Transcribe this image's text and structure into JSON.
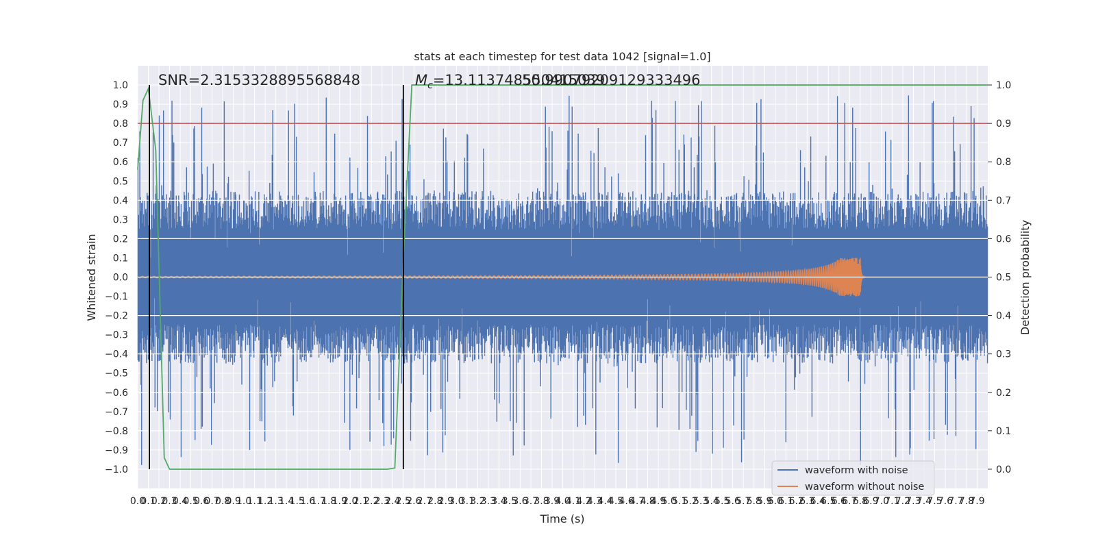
{
  "chart_data": {
    "type": "line",
    "title": "stats at each timestep for test data 1042 [signal=1.0]",
    "xlabel": "Time (s)",
    "ylabel": "Whitened strain",
    "ylabel_right": "Detection probability",
    "xlim": [
      0.0,
      8.0
    ],
    "ylim": [
      -1.1,
      1.1
    ],
    "ylim_right": [
      -0.05,
      1.05
    ],
    "x_ticks": [
      "0.0",
      "0.1",
      "0.2",
      "0.3",
      "0.4",
      "0.5",
      "0.6",
      "0.7",
      "0.8",
      "0.9",
      "1.0",
      "1.1",
      "1.2",
      "1.3",
      "1.4",
      "1.5",
      "1.6",
      "1.7",
      "1.8",
      "1.9",
      "2.0",
      "2.1",
      "2.2",
      "2.3",
      "2.4",
      "2.5",
      "2.6",
      "2.7",
      "2.8",
      "2.9",
      "3.0",
      "3.1",
      "3.2",
      "3.3",
      "3.4",
      "3.5",
      "3.6",
      "3.7",
      "3.8",
      "3.9",
      "4.0",
      "4.1",
      "4.2",
      "4.3",
      "4.4",
      "4.5",
      "4.6",
      "4.7",
      "4.8",
      "4.9",
      "5.0",
      "5.1",
      "5.2",
      "5.3",
      "5.4",
      "5.5",
      "5.6",
      "5.7",
      "5.8",
      "5.9",
      "6.0",
      "6.1",
      "6.2",
      "6.3",
      "6.4",
      "6.5",
      "6.6",
      "6.7",
      "6.8",
      "6.9",
      "7.0",
      "7.1",
      "7.2",
      "7.3",
      "7.4",
      "7.5",
      "7.6",
      "7.7",
      "7.8",
      "7.9"
    ],
    "y_ticks": [
      "1.0",
      "0.9",
      "0.8",
      "0.7",
      "0.6",
      "0.5",
      "0.4",
      "0.3",
      "0.2",
      "0.1",
      "0.0",
      "−0.1",
      "−0.2",
      "−0.3",
      "−0.4",
      "−0.5",
      "−0.6",
      "−0.7",
      "−0.8",
      "−0.9",
      "−1.0"
    ],
    "y_right_ticks": [
      "1.0",
      "0.9",
      "0.8",
      "0.7",
      "0.6",
      "0.5",
      "0.4",
      "0.3",
      "0.2",
      "0.1",
      "0.0"
    ],
    "annotations": {
      "snr": "SNR=2.3153328895568848",
      "mc_prefix": "M",
      "mc_sub": "c",
      "mc_value": "=13.113748550415039",
      "overlap_text": "50.99079209129333496"
    },
    "threshold": 0.9,
    "vertical_markers": [
      0.11,
      2.5
    ],
    "series": [
      {
        "name": "waveform with noise",
        "color": "#4c72b0",
        "envelope": {
          "upper_typical": 0.45,
          "upper_peak": 0.95,
          "lower_typical": -0.45,
          "lower_peak": -0.98
        }
      },
      {
        "name": "waveform without noise",
        "color": "#dd8452",
        "chirp": {
          "start": 0.0,
          "merger": 6.8,
          "base_amplitude": 0.004,
          "peak_amplitude": 0.1
        }
      },
      {
        "name": "detection probability",
        "color": "#55a868",
        "x": [
          0.0,
          0.05,
          0.1,
          0.11,
          0.17,
          0.25,
          0.3,
          0.5,
          1.0,
          1.5,
          2.0,
          2.2,
          2.35,
          2.42,
          2.5,
          2.58,
          3.0,
          4.0,
          5.0,
          6.0,
          7.0,
          7.9,
          8.0
        ],
        "values": [
          0.78,
          0.96,
          0.99,
          0.97,
          0.83,
          0.03,
          0.0,
          0.0,
          0.0,
          0.0,
          0.0,
          0.0,
          0.0,
          0.003,
          0.55,
          1.0,
          1.0,
          1.0,
          1.0,
          1.0,
          1.0,
          1.0,
          1.0
        ]
      }
    ],
    "legend": {
      "placement": "lower-right",
      "entries": [
        "waveform with noise",
        "waveform without noise"
      ]
    },
    "colors": {
      "axes_background": "#eaeaf2",
      "grid": "#ffffff",
      "noise": "#4c72b0",
      "clean": "#dd8452",
      "probability": "#55a868",
      "threshold": "#c44e52",
      "marker": "#000000"
    }
  }
}
